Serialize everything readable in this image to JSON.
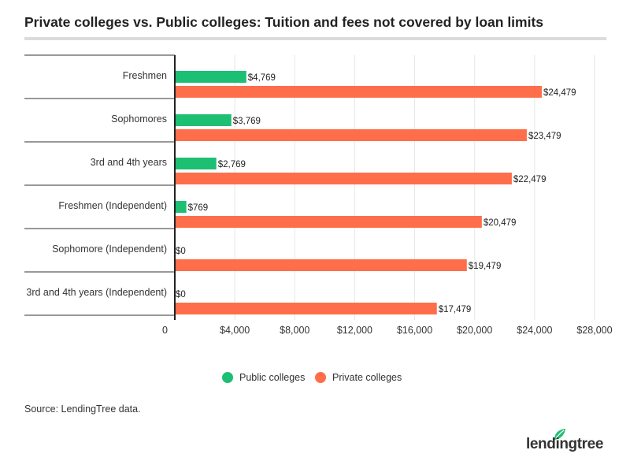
{
  "title": "Private colleges vs. Public colleges: Tuition and fees not covered by loan limits",
  "source": "Source: LendingTree data.",
  "brand": "lendingtree",
  "colors": {
    "public": "#1dbf73",
    "private": "#ff6e4a",
    "grid": "#e6e6e6",
    "axis": "#222222"
  },
  "legend": [
    {
      "label": "Public colleges",
      "color": "#1dbf73"
    },
    {
      "label": "Private colleges",
      "color": "#ff6e4a"
    }
  ],
  "chart_data": {
    "type": "bar",
    "orientation": "horizontal",
    "categories": [
      "Freshmen",
      "Sophomores",
      "3rd and 4th years",
      "Freshmen (Independent)",
      "Sophomore (Independent)",
      "3rd and 4th years (Independent)"
    ],
    "series": [
      {
        "name": "Public colleges",
        "values": [
          4769,
          3769,
          2769,
          769,
          0,
          0
        ],
        "labels": [
          "$4,769",
          "$3,769",
          "$2,769",
          "$769",
          "$0",
          "$0"
        ]
      },
      {
        "name": "Private colleges",
        "values": [
          24479,
          23479,
          22479,
          20479,
          19479,
          17479
        ],
        "labels": [
          "$24,479",
          "$23,479",
          "$22,479",
          "$20,479",
          "$19,479",
          "$17,479"
        ]
      }
    ],
    "xticks": [
      0,
      4000,
      8000,
      12000,
      16000,
      20000,
      24000,
      28000
    ],
    "xtick_labels": [
      "0",
      "$4,000",
      "$8,000",
      "$12,000",
      "$16,000",
      "$20,000",
      "$24,000",
      "$28,000"
    ],
    "xlim": [
      0,
      28000
    ],
    "grid": true,
    "legend_position": "bottom"
  }
}
